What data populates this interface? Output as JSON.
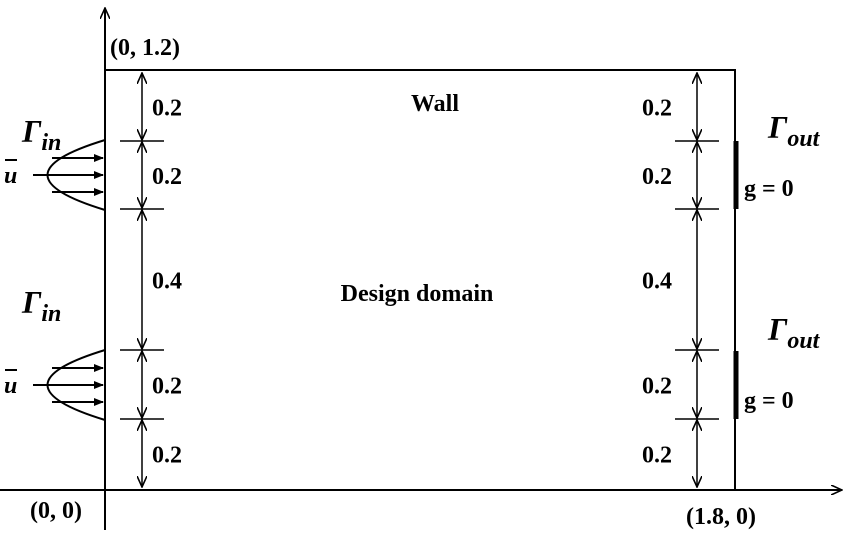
{
  "coords": {
    "top_left": "(0, 1.2)",
    "origin": "(0, 0)",
    "bottom_right": "(1.8, 0)"
  },
  "labels": {
    "wall": "Wall",
    "design_domain": "Design domain"
  },
  "inlet": {
    "gamma": "Γ",
    "sub": "in",
    "velocity": "u"
  },
  "outlet": {
    "gamma": "Γ",
    "sub": "out",
    "condition": "g = 0"
  },
  "left_dims": [
    "0.2",
    "0.2",
    "0.4",
    "0.2",
    "0.2"
  ],
  "right_dims": [
    "0.2",
    "0.2",
    "0.4",
    "0.2",
    "0.2"
  ],
  "colors": {
    "line": "#000000",
    "background": "#ffffff"
  }
}
